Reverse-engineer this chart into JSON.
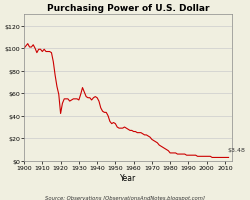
{
  "title": "Purchasing Power of U.S. Dollar",
  "xlabel": "Year",
  "source_text": "Source: Observations [ObservationsAndNotes.blogspot.com]",
  "annotation": "$3.48",
  "bg_color": "#f0efe0",
  "plot_bg_color": "#f0efe0",
  "line_color": "#cc0000",
  "border_color": "#888888",
  "grid_color": "#cccccc",
  "ylim": [
    0,
    130
  ],
  "yticks": [
    0,
    20,
    40,
    60,
    80,
    100,
    120
  ],
  "ytick_labels": [
    "$0",
    "$20",
    "$40",
    "$60",
    "$80",
    "$100",
    "$120"
  ],
  "xlim": [
    1900,
    2014
  ],
  "xticks": [
    1900,
    1910,
    1920,
    1930,
    1940,
    1950,
    1960,
    1970,
    1980,
    1990,
    2000,
    2010
  ],
  "years": [
    1900,
    1901,
    1902,
    1903,
    1904,
    1905,
    1906,
    1907,
    1908,
    1909,
    1910,
    1911,
    1912,
    1913,
    1914,
    1915,
    1916,
    1917,
    1918,
    1919,
    1920,
    1921,
    1922,
    1923,
    1924,
    1925,
    1926,
    1927,
    1928,
    1929,
    1930,
    1931,
    1932,
    1933,
    1934,
    1935,
    1936,
    1937,
    1938,
    1939,
    1940,
    1941,
    1942,
    1943,
    1944,
    1945,
    1946,
    1947,
    1948,
    1949,
    1950,
    1951,
    1952,
    1953,
    1954,
    1955,
    1956,
    1957,
    1958,
    1959,
    1960,
    1961,
    1962,
    1963,
    1964,
    1965,
    1966,
    1967,
    1968,
    1969,
    1970,
    1971,
    1972,
    1973,
    1974,
    1975,
    1976,
    1977,
    1978,
    1979,
    1980,
    1981,
    1982,
    1983,
    1984,
    1985,
    1986,
    1987,
    1988,
    1989,
    1990,
    1991,
    1992,
    1993,
    1994,
    1995,
    1996,
    1997,
    1998,
    1999,
    2000,
    2001,
    2002,
    2003,
    2004,
    2005,
    2006,
    2007,
    2008,
    2009,
    2010,
    2011,
    2012
  ],
  "values": [
    100,
    102,
    104,
    101,
    101,
    103,
    100,
    96,
    99,
    99,
    97,
    99,
    97,
    97,
    97,
    96,
    88,
    76,
    66,
    59,
    42,
    51,
    55,
    55,
    55,
    53,
    54,
    55,
    55,
    55,
    54,
    59,
    65,
    61,
    57,
    56,
    56,
    54,
    56,
    57,
    56,
    53,
    47,
    44,
    43,
    43,
    40,
    35,
    33,
    34,
    33,
    30,
    29,
    29,
    29,
    30,
    29,
    28,
    27,
    27,
    26,
    26,
    25,
    25,
    25,
    24,
    23,
    23,
    22,
    21,
    19,
    18,
    17,
    16,
    14,
    13,
    12,
    11,
    10,
    9,
    7,
    7,
    7,
    7,
    6,
    6,
    6,
    6,
    6,
    5,
    5,
    5,
    5,
    5,
    5,
    4,
    4,
    4,
    4,
    4,
    4,
    4,
    4,
    3,
    3,
    3,
    3,
    3,
    3,
    3,
    3,
    3,
    3
  ]
}
